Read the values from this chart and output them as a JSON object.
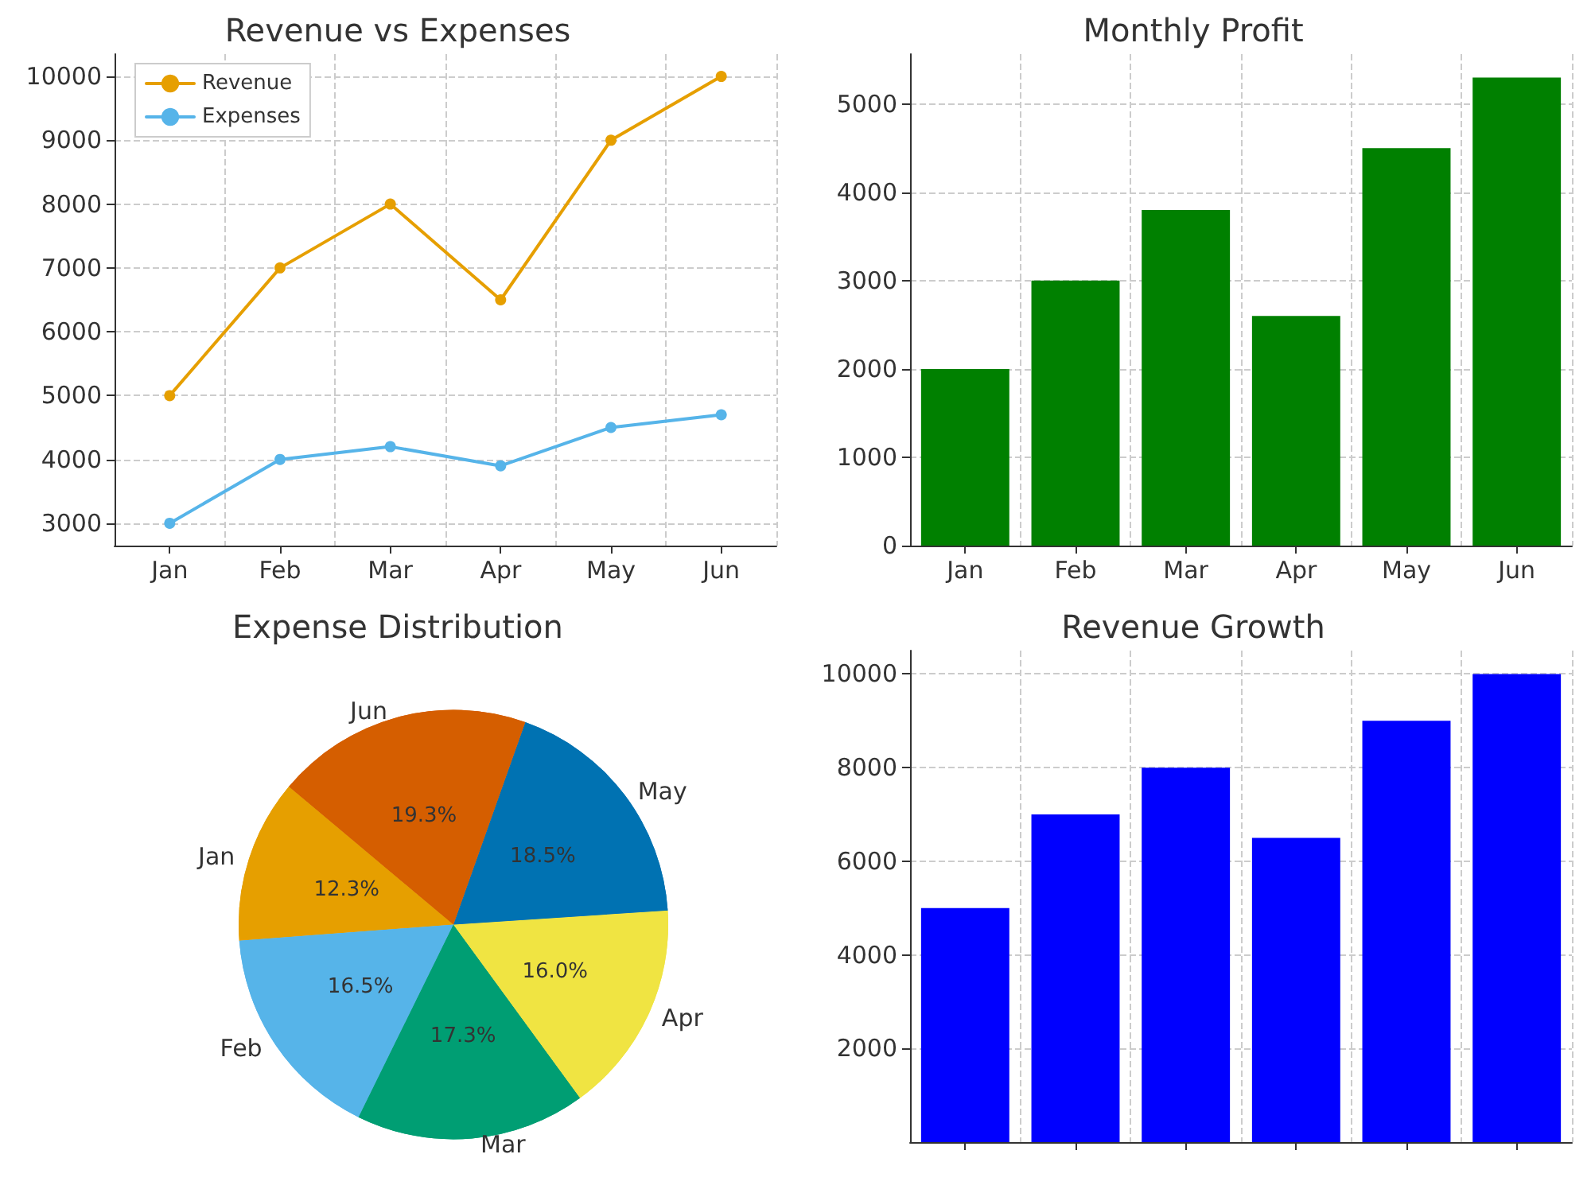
{
  "chart_data": [
    {
      "type": "line",
      "title": "Revenue vs Expenses",
      "categories": [
        "Jan",
        "Feb",
        "Mar",
        "Apr",
        "May",
        "Jun"
      ],
      "series": [
        {
          "name": "Revenue",
          "color": "#e69f00",
          "values": [
            5000,
            7000,
            8000,
            6500,
            9000,
            10000
          ]
        },
        {
          "name": "Expenses",
          "color": "#56b4e9",
          "values": [
            3000,
            4000,
            4200,
            3900,
            4500,
            4700
          ]
        }
      ],
      "ylim": [
        2650,
        10350
      ],
      "yticks": [
        3000,
        4000,
        5000,
        6000,
        7000,
        8000,
        9000,
        10000
      ],
      "grid": true,
      "legend": "top left",
      "marker": "circle",
      "line_style": "solid"
    },
    {
      "type": "bar",
      "title": "Monthly Profit",
      "categories": [
        "Jan",
        "Feb",
        "Mar",
        "Apr",
        "May",
        "Jun"
      ],
      "values": [
        2000,
        3000,
        3800,
        2600,
        4500,
        5300
      ],
      "color": "#008000",
      "ylim": [
        0,
        5565
      ],
      "yticks": [
        0,
        1000,
        2000,
        3000,
        4000,
        5000
      ],
      "grid": true
    },
    {
      "type": "pie",
      "title": "Expense Distribution",
      "categories": [
        "Jan",
        "Feb",
        "Mar",
        "Apr",
        "May",
        "Jun"
      ],
      "values": [
        12.3,
        16.5,
        17.3,
        16.0,
        18.5,
        19.3
      ],
      "colors": [
        "#e69f00",
        "#56b4e9",
        "#009e73",
        "#f0e442",
        "#0072b2",
        "#d55e00"
      ],
      "value_labels": [
        "12.3%",
        "16.5%",
        "17.3%",
        "16.0%",
        "18.5%",
        "19.3%"
      ]
    },
    {
      "type": "bar",
      "title": "Revenue Growth",
      "categories": [
        null,
        null,
        null,
        null,
        null,
        null
      ],
      "values": [
        5000,
        7000,
        8000,
        6500,
        9000,
        10000
      ],
      "color": "#0000ff",
      "ylim": [
        0,
        10500
      ],
      "yticks": [
        2000,
        4000,
        6000,
        8000,
        10000
      ],
      "grid": true,
      "tick_labels": "y"
    }
  ]
}
